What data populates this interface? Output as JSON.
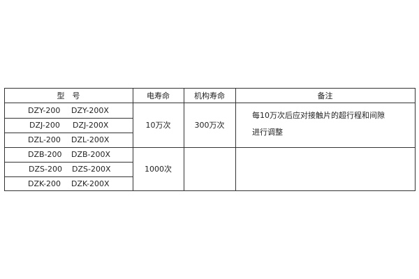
{
  "header": {
    "model": "型　号",
    "electrical_life": "电寿命",
    "mechanical_life": "机构寿命",
    "remarks": "备注"
  },
  "rows": [
    {
      "model_a": "DZY-200",
      "model_b": "DZY-200X"
    },
    {
      "model_a": "DZJ-200",
      "model_b": "DZJ-200X"
    },
    {
      "model_a": "DZL-200",
      "model_b": "DZL-200X"
    },
    {
      "model_a": "DZB-200",
      "model_b": "DZB-200X"
    },
    {
      "model_a": "DZS-200",
      "model_b": "DZS-200X"
    },
    {
      "model_a": "DZK-200",
      "model_b": "DZK-200X"
    }
  ],
  "groups": [
    {
      "electrical_life": "10万次",
      "mechanical_life": "300万次",
      "remarks_line1": "每10万次后应对接触片的超行程和间隙",
      "remarks_line2": "进行调整"
    },
    {
      "electrical_life": "1000次",
      "mechanical_life": "",
      "remarks_line1": "",
      "remarks_line2": ""
    }
  ]
}
